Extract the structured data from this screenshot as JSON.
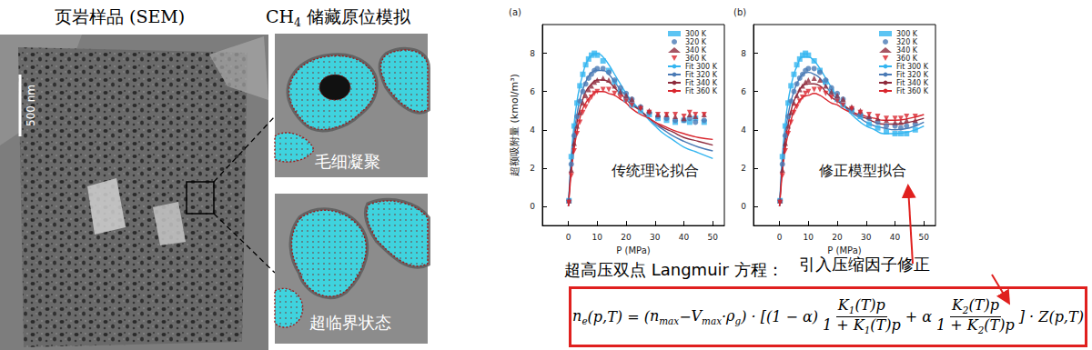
{
  "left_panel": {
    "title": "页岩样品 (SEM)",
    "scale_bar": "500 nm"
  },
  "middle_panel": {
    "title": [
      {
        "base": "CH",
        "sub": "4"
      },
      " 储藏原位模拟"
    ],
    "images": [
      {
        "label": "毛细凝聚"
      },
      {
        "label": "超临界状态"
      }
    ]
  },
  "chart_data": [
    {
      "type": "scatter",
      "title": "(a)",
      "annotation": "传统理论拟合",
      "x_label": "P (MPa)",
      "y_label": "超额吸附量 (kmol/m³)",
      "xlim": [
        -9,
        54
      ],
      "xticks": [
        0,
        10,
        20,
        30,
        40,
        50
      ],
      "ylim": [
        -1,
        9.5
      ],
      "yticks": [
        0,
        2,
        4,
        6,
        8
      ],
      "grid": false,
      "legend": "upper-right",
      "series": [
        {
          "name": "300 K",
          "type": "scatter",
          "color": "#33b5f0",
          "marker": "square",
          "x": [
            0.2,
            1,
            2,
            3,
            4,
            5,
            6,
            7,
            8,
            9,
            10,
            12,
            14,
            16,
            18,
            20,
            22,
            25,
            28,
            31,
            34,
            37,
            40,
            42,
            44,
            47
          ],
          "values": [
            0.3,
            2.6,
            4.2,
            5.4,
            6.3,
            6.9,
            7.4,
            7.7,
            7.9,
            8.0,
            7.9,
            7.6,
            7.1,
            6.5,
            6.0,
            5.6,
            5.3,
            5.0,
            4.8,
            4.6,
            4.5,
            4.4,
            4.5,
            4.4,
            4.6,
            4.4
          ]
        },
        {
          "name": "320 K",
          "type": "scatter",
          "color": "#4a7ab5",
          "marker": "circle",
          "x": [
            0.2,
            1,
            2,
            3,
            4,
            5,
            6,
            7,
            8,
            9,
            10,
            12,
            14,
            16,
            18,
            20,
            22,
            25,
            28,
            31,
            34,
            37,
            40,
            42,
            44,
            47
          ],
          "values": [
            0.3,
            2.2,
            3.7,
            4.7,
            5.5,
            6.0,
            6.4,
            6.7,
            6.9,
            7.1,
            7.2,
            7.2,
            7.0,
            6.6,
            6.2,
            5.9,
            5.6,
            5.2,
            4.9,
            4.7,
            4.6,
            4.5,
            4.5,
            4.6,
            4.4,
            4.5
          ]
        },
        {
          "name": "340 K",
          "type": "scatter",
          "color": "#8e2a3c",
          "marker": "triangle",
          "x": [
            0.2,
            1,
            2,
            3,
            4,
            5,
            6,
            7,
            8,
            9,
            10,
            12,
            14,
            16,
            18,
            20,
            22,
            25,
            28,
            31,
            34,
            37,
            40,
            42,
            44,
            47
          ],
          "values": [
            0.3,
            1.9,
            3.3,
            4.2,
            4.9,
            5.4,
            5.8,
            6.1,
            6.3,
            6.5,
            6.6,
            6.7,
            6.6,
            6.3,
            6.0,
            5.8,
            5.6,
            5.2,
            5.0,
            4.8,
            4.8,
            4.7,
            4.6,
            4.8,
            4.7,
            4.8
          ]
        },
        {
          "name": "360 K",
          "type": "scatter",
          "color": "#d9262e",
          "marker": "inverted_triangle",
          "x": [
            0.2,
            1,
            2,
            3,
            4,
            5,
            6,
            7,
            8,
            9,
            10,
            12,
            14,
            16,
            18,
            20,
            22,
            25,
            28,
            31,
            34,
            37,
            40,
            42,
            44,
            47
          ],
          "values": [
            0.2,
            1.6,
            2.9,
            3.8,
            4.4,
            4.9,
            5.2,
            5.5,
            5.7,
            5.9,
            6.0,
            6.1,
            6.1,
            5.9,
            5.7,
            5.5,
            5.3,
            5.1,
            4.9,
            4.8,
            4.8,
            4.8,
            4.7,
            4.9,
            4.8,
            4.8
          ]
        },
        {
          "name": "Fit 300 K",
          "type": "line",
          "color": "#33b5f0",
          "line_style": "solid",
          "x": [
            0,
            0.5,
            1,
            2,
            3,
            4,
            5,
            6,
            8,
            10,
            12,
            14,
            16,
            18,
            20,
            22,
            25,
            28,
            30,
            33,
            36,
            40,
            45,
            50
          ],
          "values": [
            0,
            1.5,
            2.7,
            4.3,
            5.5,
            6.3,
            6.9,
            7.4,
            7.9,
            8.0,
            7.8,
            7.4,
            6.9,
            6.4,
            5.9,
            5.5,
            5.0,
            4.5,
            4.2,
            3.8,
            3.5,
            3.1,
            2.8,
            2.5
          ]
        },
        {
          "name": "Fit 320 K",
          "type": "line",
          "color": "#4a7ab5",
          "line_style": "solid",
          "x": [
            0,
            0.5,
            1,
            2,
            3,
            4,
            5,
            6,
            8,
            10,
            12,
            14,
            16,
            18,
            20,
            22,
            25,
            28,
            30,
            33,
            36,
            40,
            45,
            50
          ],
          "values": [
            0,
            1.2,
            2.3,
            3.8,
            4.8,
            5.6,
            6.1,
            6.5,
            7.0,
            7.1,
            7.1,
            6.9,
            6.5,
            6.1,
            5.8,
            5.4,
            5.0,
            4.6,
            4.3,
            4.0,
            3.7,
            3.4,
            3.1,
            2.9
          ]
        },
        {
          "name": "Fit 340 K",
          "type": "line",
          "color": "#8e2a3c",
          "line_style": "solid",
          "x": [
            0,
            0.5,
            1,
            2,
            3,
            4,
            5,
            6,
            8,
            10,
            12,
            14,
            16,
            18,
            20,
            22,
            25,
            28,
            30,
            33,
            36,
            40,
            45,
            50
          ],
          "values": [
            0,
            1.1,
            2.0,
            3.4,
            4.4,
            5.1,
            5.6,
            6.0,
            6.4,
            6.6,
            6.6,
            6.5,
            6.2,
            5.9,
            5.6,
            5.3,
            5.0,
            4.6,
            4.4,
            4.1,
            3.9,
            3.6,
            3.4,
            3.2
          ]
        },
        {
          "name": "Fit 360 K",
          "type": "line",
          "color": "#d9262e",
          "line_style": "solid",
          "x": [
            0,
            0.5,
            1,
            2,
            3,
            4,
            5,
            6,
            8,
            10,
            12,
            14,
            16,
            18,
            20,
            22,
            25,
            28,
            30,
            33,
            36,
            40,
            45,
            50
          ],
          "values": [
            0,
            0.9,
            1.8,
            3.0,
            3.9,
            4.6,
            5.1,
            5.4,
            5.8,
            6.0,
            6.0,
            5.9,
            5.8,
            5.6,
            5.4,
            5.1,
            4.8,
            4.6,
            4.4,
            4.2,
            4.0,
            3.8,
            3.6,
            3.5
          ]
        }
      ]
    },
    {
      "type": "scatter",
      "title": "(b)",
      "annotation": "修正模型拟合",
      "x_label": "P (MPa)",
      "xlim": [
        -9,
        54
      ],
      "xticks": [
        0,
        10,
        20,
        30,
        40,
        50
      ],
      "ylim": [
        -1,
        9.5
      ],
      "yticks": [
        0,
        2,
        4,
        6,
        8
      ],
      "grid": false,
      "legend": "upper-right",
      "series": [
        {
          "name": "300 K",
          "type": "scatter",
          "color": "#33b5f0",
          "marker": "square",
          "x": [
            0.2,
            1,
            2,
            3,
            4,
            5,
            6,
            7,
            8,
            9,
            10,
            12,
            14,
            16,
            18,
            20,
            22,
            25,
            28,
            31,
            34,
            37,
            40,
            42,
            44,
            47
          ],
          "values": [
            0.3,
            2.6,
            4.2,
            5.4,
            6.3,
            6.9,
            7.4,
            7.7,
            7.9,
            8.0,
            7.9,
            7.6,
            7.1,
            6.5,
            6.0,
            5.6,
            5.3,
            5.0,
            4.7,
            4.3,
            4.1,
            3.9,
            3.8,
            3.8,
            3.8,
            4.0
          ]
        },
        {
          "name": "320 K",
          "type": "scatter",
          "color": "#4a7ab5",
          "marker": "circle",
          "x": [
            0.2,
            1,
            2,
            3,
            4,
            5,
            6,
            7,
            8,
            9,
            10,
            12,
            14,
            16,
            18,
            20,
            22,
            25,
            28,
            31,
            34,
            37,
            40,
            42,
            44,
            47
          ],
          "values": [
            0.3,
            2.2,
            3.7,
            4.7,
            5.5,
            6.0,
            6.4,
            6.7,
            6.9,
            7.1,
            7.2,
            7.2,
            7.0,
            6.6,
            6.2,
            5.9,
            5.6,
            5.1,
            4.8,
            4.6,
            4.4,
            4.2,
            4.2,
            4.1,
            4.2,
            4.3
          ]
        },
        {
          "name": "340 K",
          "type": "scatter",
          "color": "#8e2a3c",
          "marker": "triangle",
          "x": [
            0.2,
            1,
            2,
            3,
            4,
            5,
            6,
            7,
            8,
            9,
            10,
            12,
            14,
            16,
            18,
            20,
            22,
            25,
            28,
            31,
            34,
            37,
            40,
            42,
            44,
            47
          ],
          "values": [
            0.3,
            1.9,
            3.3,
            4.2,
            4.9,
            5.4,
            5.8,
            6.1,
            6.3,
            6.5,
            6.6,
            6.7,
            6.6,
            6.3,
            6.0,
            5.8,
            5.6,
            5.2,
            5.0,
            4.7,
            4.6,
            4.5,
            4.4,
            4.4,
            4.5,
            4.5
          ]
        },
        {
          "name": "360 K",
          "type": "scatter",
          "color": "#d9262e",
          "marker": "inverted_triangle",
          "x": [
            0.2,
            1,
            2,
            3,
            4,
            5,
            6,
            7,
            8,
            9,
            10,
            12,
            14,
            16,
            18,
            20,
            22,
            25,
            28,
            31,
            34,
            37,
            40,
            42,
            44,
            47
          ],
          "values": [
            0.2,
            1.6,
            2.9,
            3.8,
            4.4,
            4.9,
            5.2,
            5.5,
            5.7,
            5.9,
            6.0,
            6.1,
            6.1,
            5.9,
            5.7,
            5.5,
            5.3,
            5.1,
            4.9,
            4.8,
            4.7,
            4.6,
            4.6,
            4.6,
            4.7,
            4.7
          ]
        },
        {
          "name": "Fit 300 K",
          "type": "line",
          "color": "#33b5f0",
          "line_style": "solid",
          "x": [
            0,
            0.5,
            1,
            2,
            3,
            4,
            5,
            6,
            8,
            10,
            12,
            14,
            16,
            18,
            20,
            22,
            25,
            28,
            30,
            33,
            36,
            40,
            45,
            50
          ],
          "values": [
            0,
            1.5,
            2.7,
            4.3,
            5.5,
            6.3,
            6.9,
            7.3,
            7.8,
            7.8,
            7.6,
            7.2,
            6.7,
            6.2,
            5.7,
            5.3,
            4.8,
            4.4,
            4.2,
            4.0,
            3.8,
            3.8,
            3.9,
            4.2
          ]
        },
        {
          "name": "Fit 320 K",
          "type": "line",
          "color": "#4a7ab5",
          "line_style": "solid",
          "x": [
            0,
            0.5,
            1,
            2,
            3,
            4,
            5,
            6,
            8,
            10,
            12,
            14,
            16,
            18,
            20,
            22,
            25,
            28,
            30,
            33,
            36,
            40,
            45,
            50
          ],
          "values": [
            0,
            1.2,
            2.3,
            3.8,
            4.8,
            5.5,
            6.0,
            6.4,
            6.9,
            7.0,
            6.9,
            6.7,
            6.3,
            5.9,
            5.6,
            5.3,
            4.9,
            4.6,
            4.4,
            4.2,
            4.1,
            4.0,
            4.1,
            4.4
          ]
        },
        {
          "name": "Fit 340 K",
          "type": "line",
          "color": "#8e2a3c",
          "line_style": "solid",
          "x": [
            0,
            0.5,
            1,
            2,
            3,
            4,
            5,
            6,
            8,
            10,
            12,
            14,
            16,
            18,
            20,
            22,
            25,
            28,
            30,
            33,
            36,
            40,
            45,
            50
          ],
          "values": [
            0,
            1.1,
            2.0,
            3.4,
            4.3,
            5.0,
            5.5,
            5.8,
            6.3,
            6.4,
            6.4,
            6.3,
            6.0,
            5.7,
            5.5,
            5.3,
            5.0,
            4.7,
            4.6,
            4.4,
            4.3,
            4.3,
            4.4,
            4.6
          ]
        },
        {
          "name": "Fit 360 K",
          "type": "line",
          "color": "#d9262e",
          "line_style": "solid",
          "x": [
            0,
            0.5,
            1,
            2,
            3,
            4,
            5,
            6,
            8,
            10,
            12,
            14,
            16,
            18,
            20,
            22,
            25,
            28,
            30,
            33,
            36,
            40,
            45,
            50
          ],
          "values": [
            0,
            0.9,
            1.8,
            3.0,
            3.8,
            4.5,
            5.0,
            5.3,
            5.7,
            5.8,
            5.9,
            5.8,
            5.6,
            5.4,
            5.3,
            5.1,
            4.9,
            4.8,
            4.7,
            4.6,
            4.5,
            4.5,
            4.6,
            4.8
          ]
        }
      ]
    }
  ],
  "bottom": {
    "equation_label": "超高压双点 Langmuir 方程：",
    "correction_label": "引入压缩因子修正",
    "equation": [
      {
        "base": "n",
        "sub": "e"
      },
      "(p,T) = (",
      {
        "base": "n",
        "sub": "max"
      },
      " − ",
      {
        "base": "V",
        "sub": "max"
      },
      " · ",
      {
        "base": "ρ",
        "sub": "g"
      },
      ") · [(1 − α)",
      {
        "frac": [
          [
            {
              "base": "K",
              "sub": "1"
            },
            "(T)p"
          ],
          [
            "1 + ",
            {
              "base": "K",
              "sub": "1"
            },
            "(T)p"
          ]
        ]
      },
      " + α",
      {
        "frac": [
          [
            {
              "base": "K",
              "sub": "2"
            },
            "(T)p"
          ],
          [
            "1 + ",
            {
              "base": "K",
              "sub": "2"
            },
            "(T)p"
          ]
        ]
      },
      "] · Z(p,T)"
    ]
  }
}
